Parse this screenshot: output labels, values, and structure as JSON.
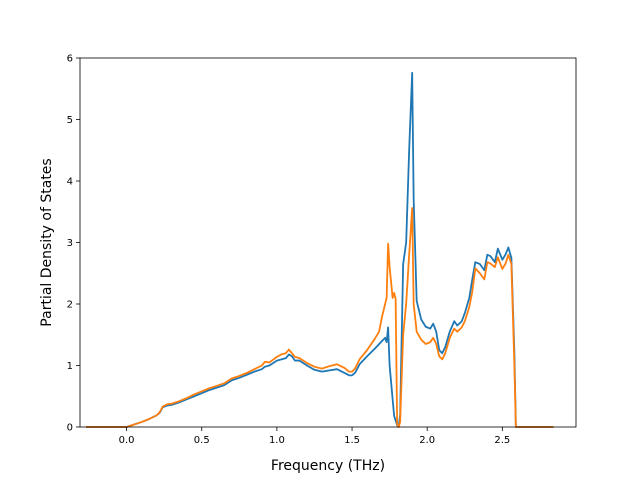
{
  "chart_data": {
    "type": "line",
    "title": "",
    "xlabel": "Frequency (THz)",
    "ylabel": "Partial Density of States",
    "xlim": [
      -0.31,
      2.99
    ],
    "ylim": [
      0,
      6
    ],
    "xticks": [
      0.0,
      0.5,
      1.0,
      1.5,
      2.0,
      2.5
    ],
    "xtick_labels": [
      "0.0",
      "0.5",
      "1.0",
      "1.5",
      "2.0",
      "2.5"
    ],
    "yticks": [
      0,
      1,
      2,
      3,
      4,
      5,
      6
    ],
    "ytick_labels": [
      "0",
      "1",
      "2",
      "3",
      "4",
      "5",
      "6"
    ],
    "grid": false,
    "series": [
      {
        "color": "#1f77b4",
        "points": [
          [
            -0.27,
            0
          ],
          [
            0.0,
            0
          ],
          [
            0.05,
            0.04
          ],
          [
            0.1,
            0.08
          ],
          [
            0.15,
            0.13
          ],
          [
            0.2,
            0.19
          ],
          [
            0.22,
            0.23
          ],
          [
            0.24,
            0.32
          ],
          [
            0.27,
            0.35
          ],
          [
            0.3,
            0.36
          ],
          [
            0.35,
            0.4
          ],
          [
            0.4,
            0.45
          ],
          [
            0.45,
            0.5
          ],
          [
            0.5,
            0.55
          ],
          [
            0.55,
            0.6
          ],
          [
            0.6,
            0.64
          ],
          [
            0.65,
            0.68
          ],
          [
            0.7,
            0.76
          ],
          [
            0.75,
            0.8
          ],
          [
            0.8,
            0.85
          ],
          [
            0.85,
            0.9
          ],
          [
            0.9,
            0.94
          ],
          [
            0.92,
            0.98
          ],
          [
            0.95,
            1.0
          ],
          [
            1.0,
            1.08
          ],
          [
            1.03,
            1.1
          ],
          [
            1.06,
            1.12
          ],
          [
            1.08,
            1.18
          ],
          [
            1.1,
            1.15
          ],
          [
            1.12,
            1.08
          ],
          [
            1.15,
            1.08
          ],
          [
            1.2,
            1.0
          ],
          [
            1.25,
            0.93
          ],
          [
            1.3,
            0.9
          ],
          [
            1.35,
            0.92
          ],
          [
            1.4,
            0.94
          ],
          [
            1.45,
            0.88
          ],
          [
            1.48,
            0.84
          ],
          [
            1.5,
            0.84
          ],
          [
            1.52,
            0.88
          ],
          [
            1.55,
            1.02
          ],
          [
            1.6,
            1.15
          ],
          [
            1.65,
            1.27
          ],
          [
            1.7,
            1.4
          ],
          [
            1.72,
            1.45
          ],
          [
            1.73,
            1.38
          ],
          [
            1.74,
            1.62
          ],
          [
            1.75,
            1.0
          ],
          [
            1.77,
            0.45
          ],
          [
            1.78,
            0.18
          ],
          [
            1.8,
            0.03
          ],
          [
            1.81,
            0
          ],
          [
            1.82,
            0.2
          ],
          [
            1.84,
            2.65
          ],
          [
            1.86,
            3.0
          ],
          [
            1.88,
            4.5
          ],
          [
            1.9,
            5.76
          ],
          [
            1.91,
            3.7
          ],
          [
            1.93,
            2.05
          ],
          [
            1.96,
            1.75
          ],
          [
            1.99,
            1.63
          ],
          [
            2.02,
            1.6
          ],
          [
            2.04,
            1.68
          ],
          [
            2.06,
            1.55
          ],
          [
            2.08,
            1.25
          ],
          [
            2.1,
            1.2
          ],
          [
            2.12,
            1.3
          ],
          [
            2.15,
            1.55
          ],
          [
            2.18,
            1.72
          ],
          [
            2.2,
            1.65
          ],
          [
            2.23,
            1.72
          ],
          [
            2.25,
            1.85
          ],
          [
            2.28,
            2.1
          ],
          [
            2.3,
            2.4
          ],
          [
            2.32,
            2.68
          ],
          [
            2.35,
            2.65
          ],
          [
            2.38,
            2.55
          ],
          [
            2.4,
            2.8
          ],
          [
            2.42,
            2.78
          ],
          [
            2.45,
            2.68
          ],
          [
            2.47,
            2.9
          ],
          [
            2.5,
            2.72
          ],
          [
            2.52,
            2.8
          ],
          [
            2.54,
            2.92
          ],
          [
            2.56,
            2.75
          ],
          [
            2.58,
            1.2
          ],
          [
            2.59,
            0
          ],
          [
            2.84,
            0
          ]
        ]
      },
      {
        "color": "#ff7f0e",
        "points": [
          [
            -0.27,
            0
          ],
          [
            0.0,
            0
          ],
          [
            0.05,
            0.04
          ],
          [
            0.1,
            0.08
          ],
          [
            0.15,
            0.13
          ],
          [
            0.2,
            0.19
          ],
          [
            0.22,
            0.24
          ],
          [
            0.24,
            0.33
          ],
          [
            0.27,
            0.37
          ],
          [
            0.3,
            0.38
          ],
          [
            0.35,
            0.42
          ],
          [
            0.4,
            0.47
          ],
          [
            0.45,
            0.53
          ],
          [
            0.5,
            0.58
          ],
          [
            0.55,
            0.63
          ],
          [
            0.6,
            0.67
          ],
          [
            0.65,
            0.71
          ],
          [
            0.7,
            0.79
          ],
          [
            0.75,
            0.83
          ],
          [
            0.8,
            0.88
          ],
          [
            0.85,
            0.94
          ],
          [
            0.9,
            1.0
          ],
          [
            0.92,
            1.06
          ],
          [
            0.95,
            1.05
          ],
          [
            1.0,
            1.14
          ],
          [
            1.03,
            1.18
          ],
          [
            1.06,
            1.2
          ],
          [
            1.08,
            1.26
          ],
          [
            1.1,
            1.2
          ],
          [
            1.12,
            1.14
          ],
          [
            1.15,
            1.12
          ],
          [
            1.2,
            1.04
          ],
          [
            1.25,
            0.98
          ],
          [
            1.3,
            0.95
          ],
          [
            1.35,
            0.99
          ],
          [
            1.4,
            1.02
          ],
          [
            1.45,
            0.96
          ],
          [
            1.48,
            0.9
          ],
          [
            1.5,
            0.9
          ],
          [
            1.52,
            0.95
          ],
          [
            1.55,
            1.1
          ],
          [
            1.6,
            1.25
          ],
          [
            1.65,
            1.43
          ],
          [
            1.68,
            1.55
          ],
          [
            1.7,
            1.8
          ],
          [
            1.72,
            2.0
          ],
          [
            1.73,
            2.1
          ],
          [
            1.74,
            2.98
          ],
          [
            1.75,
            2.6
          ],
          [
            1.77,
            2.1
          ],
          [
            1.78,
            2.18
          ],
          [
            1.79,
            2.08
          ],
          [
            1.8,
            0.05
          ],
          [
            1.81,
            0
          ],
          [
            1.82,
            0.08
          ],
          [
            1.84,
            1.5
          ],
          [
            1.86,
            2.0
          ],
          [
            1.88,
            2.8
          ],
          [
            1.9,
            3.56
          ],
          [
            1.91,
            2.0
          ],
          [
            1.93,
            1.55
          ],
          [
            1.96,
            1.42
          ],
          [
            1.99,
            1.35
          ],
          [
            2.02,
            1.38
          ],
          [
            2.04,
            1.45
          ],
          [
            2.06,
            1.35
          ],
          [
            2.08,
            1.15
          ],
          [
            2.1,
            1.1
          ],
          [
            2.12,
            1.2
          ],
          [
            2.15,
            1.45
          ],
          [
            2.18,
            1.6
          ],
          [
            2.2,
            1.55
          ],
          [
            2.23,
            1.62
          ],
          [
            2.25,
            1.72
          ],
          [
            2.28,
            1.95
          ],
          [
            2.3,
            2.2
          ],
          [
            2.32,
            2.58
          ],
          [
            2.35,
            2.5
          ],
          [
            2.38,
            2.4
          ],
          [
            2.4,
            2.68
          ],
          [
            2.42,
            2.66
          ],
          [
            2.45,
            2.6
          ],
          [
            2.47,
            2.76
          ],
          [
            2.5,
            2.57
          ],
          [
            2.52,
            2.65
          ],
          [
            2.54,
            2.8
          ],
          [
            2.56,
            2.65
          ],
          [
            2.58,
            1.0
          ],
          [
            2.59,
            0
          ],
          [
            2.84,
            0
          ]
        ]
      }
    ]
  }
}
